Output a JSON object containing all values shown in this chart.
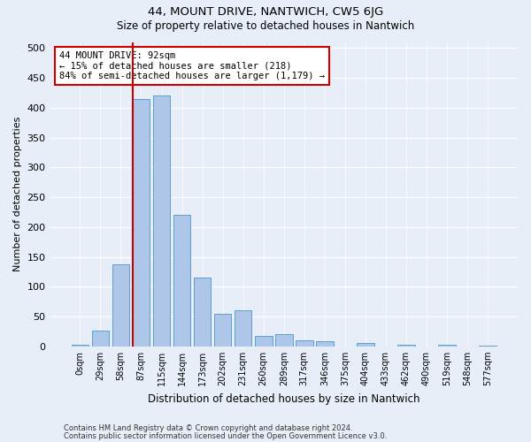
{
  "title": "44, MOUNT DRIVE, NANTWICH, CW5 6JG",
  "subtitle": "Size of property relative to detached houses in Nantwich",
  "xlabel": "Distribution of detached houses by size in Nantwich",
  "ylabel": "Number of detached properties",
  "bar_labels": [
    "0sqm",
    "29sqm",
    "58sqm",
    "87sqm",
    "115sqm",
    "144sqm",
    "173sqm",
    "202sqm",
    "231sqm",
    "260sqm",
    "289sqm",
    "317sqm",
    "346sqm",
    "375sqm",
    "404sqm",
    "433sqm",
    "462sqm",
    "490sqm",
    "519sqm",
    "548sqm",
    "577sqm"
  ],
  "bar_values": [
    2,
    27,
    137,
    415,
    420,
    220,
    115,
    55,
    60,
    18,
    20,
    10,
    8,
    0,
    5,
    0,
    3,
    0,
    2,
    0,
    1
  ],
  "bar_color": "#aec6e8",
  "bar_edge_color": "#5a9fd4",
  "vline_bin_index": 3,
  "annotation_text": "44 MOUNT DRIVE: 92sqm\n← 15% of detached houses are smaller (218)\n84% of semi-detached houses are larger (1,179) →",
  "annotation_box_color": "white",
  "annotation_box_edge_color": "#cc0000",
  "vline_color": "#cc0000",
  "ylim": [
    0,
    510
  ],
  "yticks": [
    0,
    50,
    100,
    150,
    200,
    250,
    300,
    350,
    400,
    450,
    500
  ],
  "footer1": "Contains HM Land Registry data © Crown copyright and database right 2024.",
  "footer2": "Contains public sector information licensed under the Open Government Licence v3.0.",
  "bg_color": "#e8eef8",
  "plot_bg_color": "#e8eef8",
  "title_fontsize": 9.5,
  "subtitle_fontsize": 8.5
}
